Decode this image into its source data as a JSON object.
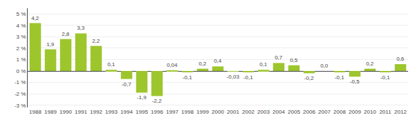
{
  "chart_data": {
    "type": "bar",
    "categories": [
      "1988",
      "1989",
      "1990",
      "1991",
      "1992",
      "1993",
      "1994",
      "1995",
      "1996",
      "1997",
      "1998",
      "1999",
      "2000",
      "2001",
      "2002",
      "2003",
      "2004",
      "2005",
      "2006",
      "2007",
      "2008",
      "2009",
      "2010",
      "2011",
      "2012"
    ],
    "values": [
      4.2,
      1.9,
      2.8,
      3.3,
      2.2,
      0.1,
      -0.7,
      -1.9,
      -2.2,
      0.04,
      -0.1,
      0.2,
      0.4,
      -0.03,
      -0.1,
      0.1,
      0.7,
      0.5,
      -0.2,
      0.0,
      -0.1,
      -0.5,
      0.2,
      -0.1,
      0.6
    ],
    "value_labels": [
      "4,2",
      "1,9",
      "2,8",
      "3,3",
      "2,2",
      "0,1",
      "-0,7",
      "-1,9",
      "-2,2",
      "0,04",
      "-0,1",
      "0,2",
      "0,4",
      "-0,03",
      "-0,1",
      "0,1",
      "0,7",
      "0,5",
      "-0,2",
      "0,0",
      "-0,1",
      "-0,5",
      "0,2",
      "-0,1",
      "0,6"
    ],
    "data_labels": true,
    "color": "#9dc62d",
    "ylim": [
      -3.2,
      5.5
    ],
    "yticks": [
      {
        "value": -3,
        "label": "-3 %"
      },
      {
        "value": -2,
        "label": "-2 %"
      },
      {
        "value": -1,
        "label": "-1 %"
      },
      {
        "value": 0,
        "label": "0 %"
      },
      {
        "value": 1,
        "label": "1 %"
      },
      {
        "value": 2,
        "label": "2 %"
      },
      {
        "value": 3,
        "label": "3 %"
      },
      {
        "value": 4,
        "label": "4 %"
      },
      {
        "value": 5,
        "label": "5 %"
      }
    ],
    "grid": true
  }
}
